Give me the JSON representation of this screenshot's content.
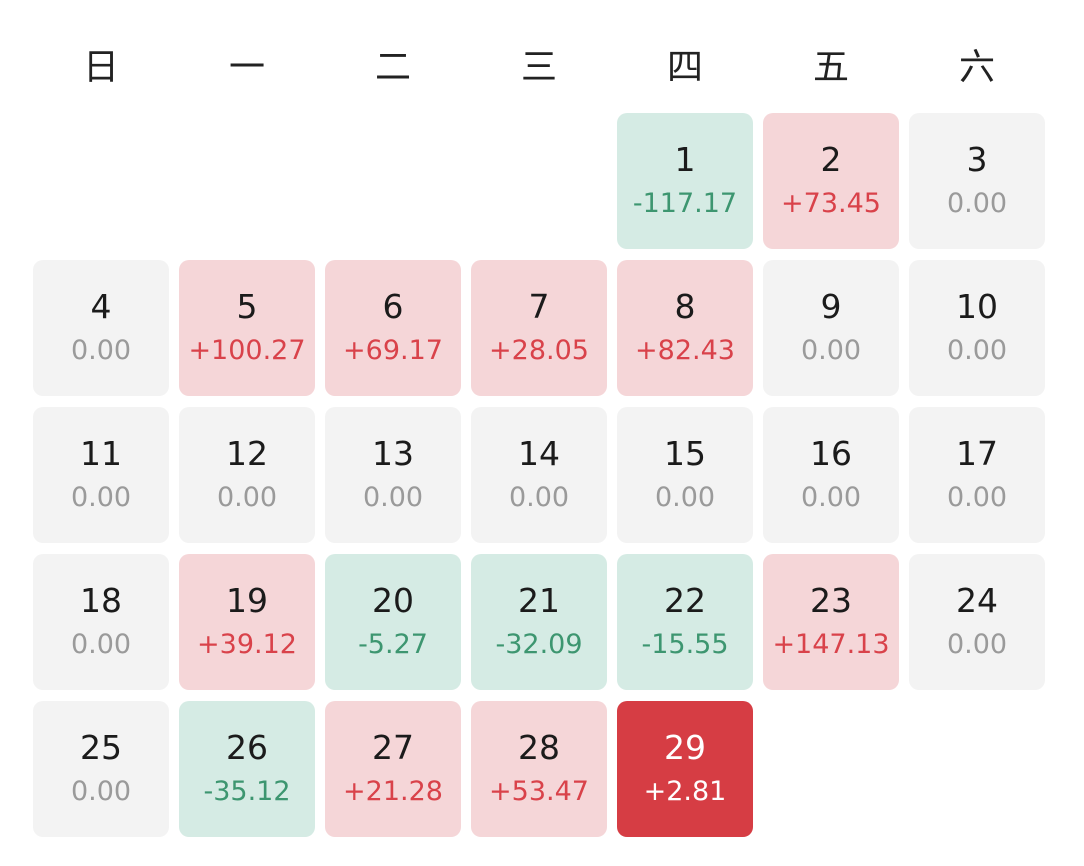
{
  "weekdays": [
    "日",
    "一",
    "二",
    "三",
    "四",
    "五",
    "六"
  ],
  "leading_blanks": 4,
  "days": [
    {
      "day": "1",
      "value": "-117.17",
      "status": "down"
    },
    {
      "day": "2",
      "value": "+73.45",
      "status": "up"
    },
    {
      "day": "3",
      "value": "0.00",
      "status": "neutral"
    },
    {
      "day": "4",
      "value": "0.00",
      "status": "neutral"
    },
    {
      "day": "5",
      "value": "+100.27",
      "status": "up"
    },
    {
      "day": "6",
      "value": "+69.17",
      "status": "up"
    },
    {
      "day": "7",
      "value": "+28.05",
      "status": "up"
    },
    {
      "day": "8",
      "value": "+82.43",
      "status": "up"
    },
    {
      "day": "9",
      "value": "0.00",
      "status": "neutral"
    },
    {
      "day": "10",
      "value": "0.00",
      "status": "neutral"
    },
    {
      "day": "11",
      "value": "0.00",
      "status": "neutral"
    },
    {
      "day": "12",
      "value": "0.00",
      "status": "neutral"
    },
    {
      "day": "13",
      "value": "0.00",
      "status": "neutral"
    },
    {
      "day": "14",
      "value": "0.00",
      "status": "neutral"
    },
    {
      "day": "15",
      "value": "0.00",
      "status": "neutral"
    },
    {
      "day": "16",
      "value": "0.00",
      "status": "neutral"
    },
    {
      "day": "17",
      "value": "0.00",
      "status": "neutral"
    },
    {
      "day": "18",
      "value": "0.00",
      "status": "neutral"
    },
    {
      "day": "19",
      "value": "+39.12",
      "status": "up"
    },
    {
      "day": "20",
      "value": "-5.27",
      "status": "down"
    },
    {
      "day": "21",
      "value": "-32.09",
      "status": "down"
    },
    {
      "day": "22",
      "value": "-15.55",
      "status": "down"
    },
    {
      "day": "23",
      "value": "+147.13",
      "status": "up"
    },
    {
      "day": "24",
      "value": "0.00",
      "status": "neutral"
    },
    {
      "day": "25",
      "value": "0.00",
      "status": "neutral"
    },
    {
      "day": "26",
      "value": "-35.12",
      "status": "down"
    },
    {
      "day": "27",
      "value": "+21.28",
      "status": "up"
    },
    {
      "day": "28",
      "value": "+53.47",
      "status": "up"
    },
    {
      "day": "29",
      "value": "+2.81",
      "status": "selected"
    }
  ],
  "colors": {
    "up_bg": "#f5d6d8",
    "up_text": "#d9424a",
    "down_bg": "#d5ebe4",
    "down_text": "#3d9670",
    "neutral_bg": "#f3f3f3",
    "neutral_text": "#9a9a9a",
    "selected_bg": "#d63d44"
  }
}
